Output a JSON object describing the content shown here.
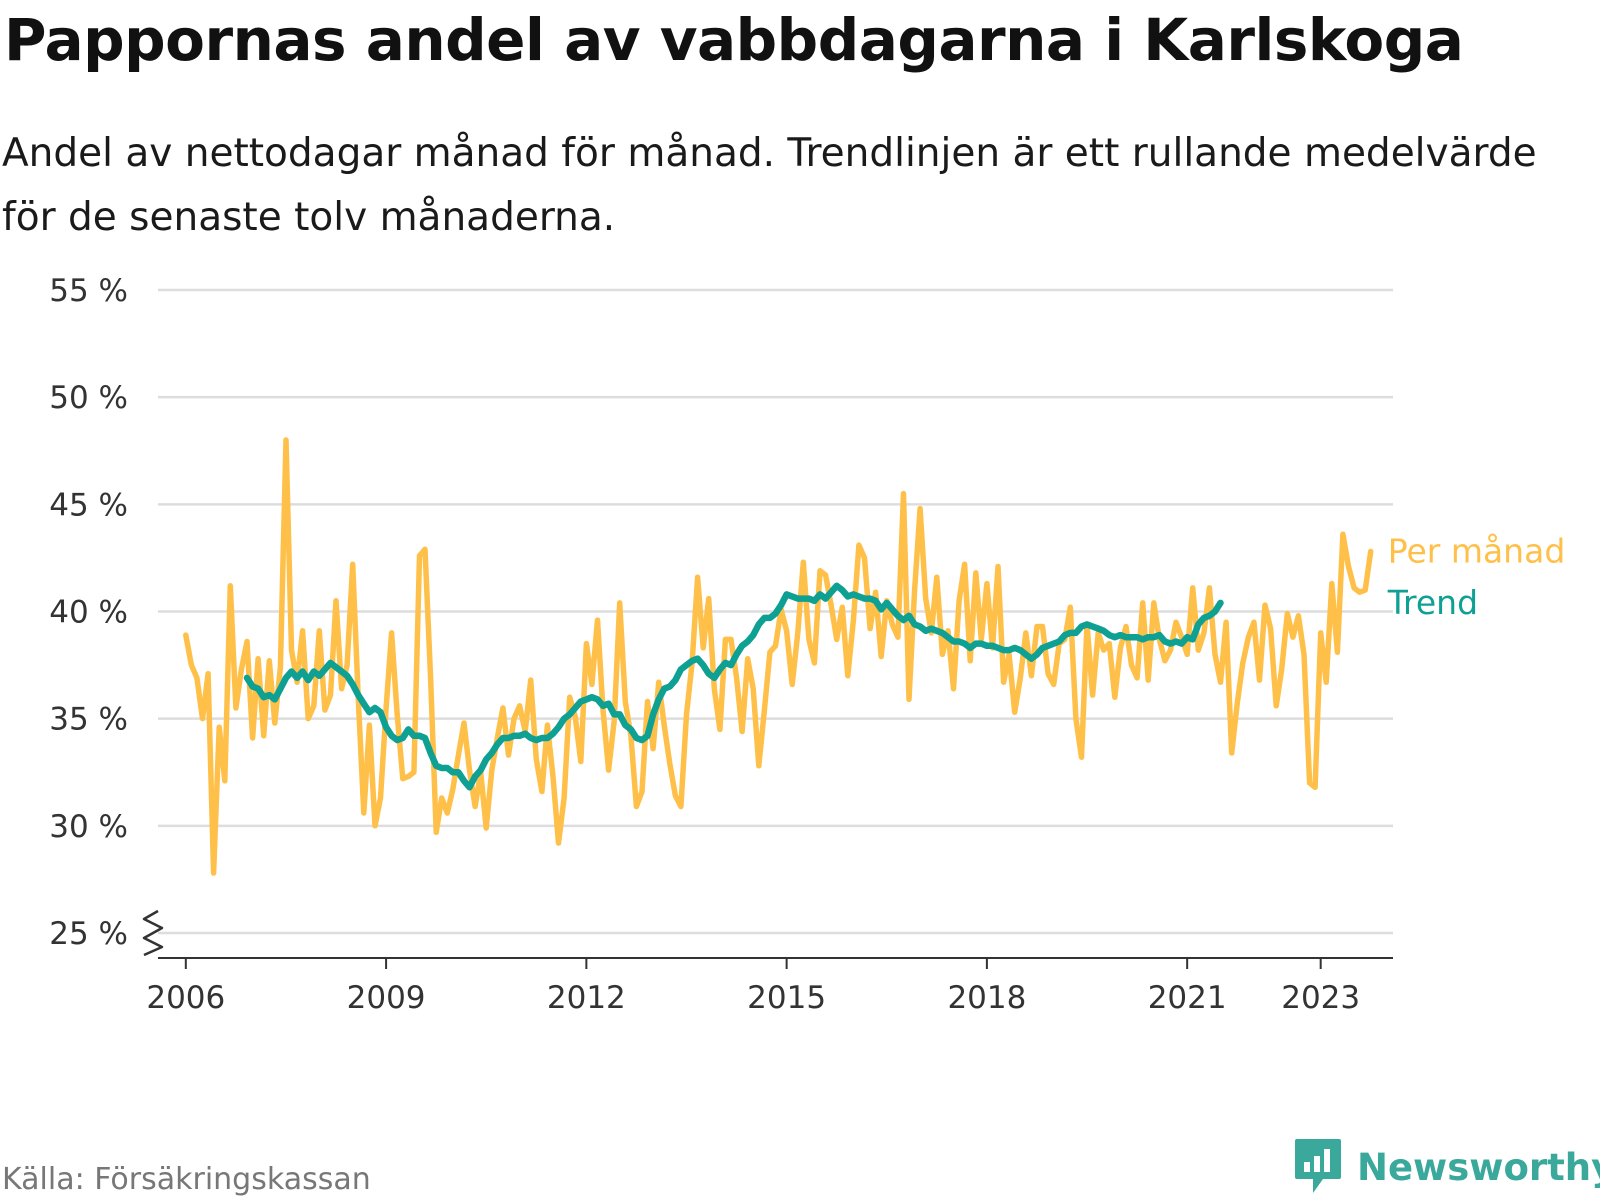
{
  "title": "Pappornas andel av vabbdagarna i Karlskoga",
  "subtitle": "Andel av nettodagar månad för månad. Trendlinjen är ett rullande medelvärde för de senaste tolv månaderna.",
  "source": "Källa: Försäkringskassan",
  "brand": {
    "name": "Newsworthy",
    "icon": "newsworthy-logo-icon",
    "color": "#3aa89a"
  },
  "chart_data": {
    "type": "line",
    "title": "Pappornas andel av vabbdagarna i Karlskoga",
    "ylim": [
      25,
      55
    ],
    "y_ticks": [
      25,
      30,
      35,
      40,
      45,
      50,
      55
    ],
    "y_tick_labels": [
      "25 %",
      "30 %",
      "35 %",
      "40 %",
      "45 %",
      "50 %",
      "55 %"
    ],
    "y_axis_break": true,
    "x_ticks": [
      2006,
      2009,
      2012,
      2015,
      2018,
      2021,
      2023
    ],
    "x_tick_labels": [
      "2006",
      "2009",
      "2012",
      "2015",
      "2018",
      "2021",
      "2023"
    ],
    "xlim": [
      "2005-08",
      "2024-02"
    ],
    "grid": true,
    "legend": "direct labels at right end of lines",
    "series": [
      {
        "name": "Per månad",
        "color": "#ffc04a",
        "start": "2006-01",
        "frequency": "monthly",
        "values": [
          38.9,
          37.5,
          36.9,
          35.0,
          37.1,
          27.8,
          34.6,
          32.1,
          41.2,
          35.5,
          37.3,
          38.6,
          34.1,
          37.8,
          34.2,
          37.7,
          34.8,
          37.4,
          48.0,
          38.2,
          36.7,
          39.1,
          35.0,
          35.6,
          39.1,
          35.4,
          36.1,
          40.5,
          36.4,
          37.5,
          42.2,
          35.9,
          30.6,
          34.7,
          30.0,
          31.3,
          35.5,
          39.0,
          35.2,
          32.2,
          32.3,
          32.5,
          42.6,
          42.9,
          36.9,
          29.7,
          31.3,
          30.6,
          31.7,
          33.3,
          34.8,
          32.6,
          30.9,
          32.5,
          29.9,
          32.6,
          34.1,
          35.5,
          33.3,
          35.0,
          35.6,
          34.4,
          36.8,
          33.1,
          31.6,
          34.7,
          32.3,
          29.2,
          31.3,
          36.0,
          35.1,
          33.0,
          38.5,
          36.6,
          39.6,
          35.4,
          32.6,
          34.9,
          40.4,
          35.8,
          34.2,
          30.9,
          31.6,
          35.8,
          33.6,
          36.7,
          34.7,
          32.9,
          31.4,
          30.9,
          35.2,
          37.6,
          41.6,
          38.3,
          40.6,
          36.4,
          34.5,
          38.7,
          38.7,
          36.9,
          34.4,
          37.8,
          36.4,
          32.8,
          35.4,
          38.1,
          38.4,
          40.1,
          39.1,
          36.6,
          39.0,
          42.3,
          38.7,
          37.6,
          41.9,
          41.7,
          40.3,
          38.7,
          40.2,
          37.0,
          39.6,
          43.1,
          42.5,
          39.2,
          40.9,
          37.9,
          40.5,
          39.4,
          38.8,
          45.5,
          35.9,
          41.0,
          44.8,
          40.6,
          39.0,
          41.6,
          38.0,
          39.1,
          36.4,
          40.5,
          42.2,
          37.7,
          41.8,
          38.7,
          41.3,
          38.3,
          42.1,
          36.7,
          38.0,
          35.3,
          36.9,
          39.0,
          37.0,
          39.3,
          39.3,
          37.1,
          36.6,
          38.5,
          38.7,
          40.2,
          35.0,
          33.2,
          39.4,
          36.1,
          39.0,
          38.2,
          38.5,
          36.0,
          38.3,
          39.3,
          37.5,
          36.9,
          40.4,
          36.8,
          40.4,
          38.7,
          37.7,
          38.2,
          39.5,
          38.8,
          38.0,
          41.1,
          38.2,
          39.0,
          41.1,
          38.0,
          36.7,
          39.5,
          33.4,
          35.7,
          37.6,
          38.8,
          39.5,
          36.8,
          40.3,
          39.2,
          35.6,
          37.3,
          39.9,
          38.8,
          39.8,
          38.0,
          32.0,
          31.8,
          39.0,
          36.7,
          41.3,
          38.1,
          43.6,
          42.1,
          41.1,
          40.9,
          41.0,
          42.8
        ]
      },
      {
        "name": "Trend",
        "color": "#0fa094",
        "start": "2006-12",
        "frequency": "monthly",
        "values": [
          36.9,
          36.5,
          36.4,
          36.0,
          36.1,
          35.9,
          36.4,
          36.9,
          37.2,
          36.9,
          37.2,
          36.8,
          37.2,
          37.0,
          37.3,
          37.6,
          37.4,
          37.2,
          37.0,
          36.6,
          36.1,
          35.7,
          35.3,
          35.5,
          35.3,
          34.6,
          34.2,
          34.0,
          34.1,
          34.5,
          34.2,
          34.2,
          34.1,
          33.4,
          32.8,
          32.7,
          32.7,
          32.5,
          32.5,
          32.1,
          31.8,
          32.3,
          32.6,
          33.1,
          33.4,
          33.8,
          34.1,
          34.1,
          34.2,
          34.2,
          34.3,
          34.1,
          34.0,
          34.1,
          34.1,
          34.3,
          34.6,
          35.0,
          35.2,
          35.5,
          35.8,
          35.9,
          36.0,
          35.9,
          35.6,
          35.7,
          35.2,
          35.2,
          34.7,
          34.5,
          34.1,
          34.0,
          34.2,
          35.2,
          35.9,
          36.4,
          36.5,
          36.8,
          37.3,
          37.5,
          37.7,
          37.8,
          37.5,
          37.1,
          36.9,
          37.3,
          37.6,
          37.5,
          38.0,
          38.4,
          38.6,
          38.9,
          39.4,
          39.7,
          39.7,
          39.9,
          40.3,
          40.8,
          40.7,
          40.6,
          40.6,
          40.6,
          40.5,
          40.8,
          40.6,
          40.9,
          41.2,
          41.0,
          40.7,
          40.8,
          40.7,
          40.6,
          40.6,
          40.5,
          40.1,
          40.4,
          40.1,
          39.8,
          39.6,
          39.8,
          39.4,
          39.3,
          39.1,
          39.2,
          39.1,
          39.0,
          38.8,
          38.6,
          38.6,
          38.5,
          38.3,
          38.5,
          38.5,
          38.4,
          38.4,
          38.3,
          38.2,
          38.2,
          38.3,
          38.2,
          38.0,
          37.8,
          38.0,
          38.3,
          38.4,
          38.5,
          38.6,
          38.9,
          39.0,
          39.0,
          39.3,
          39.4,
          39.3,
          39.2,
          39.1,
          38.9,
          38.8,
          38.9,
          38.8,
          38.8,
          38.8,
          38.7,
          38.8,
          38.8,
          38.9,
          38.6,
          38.5,
          38.6,
          38.5,
          38.8,
          38.7,
          39.4,
          39.7,
          39.8,
          40.0,
          40.4
        ]
      }
    ]
  }
}
